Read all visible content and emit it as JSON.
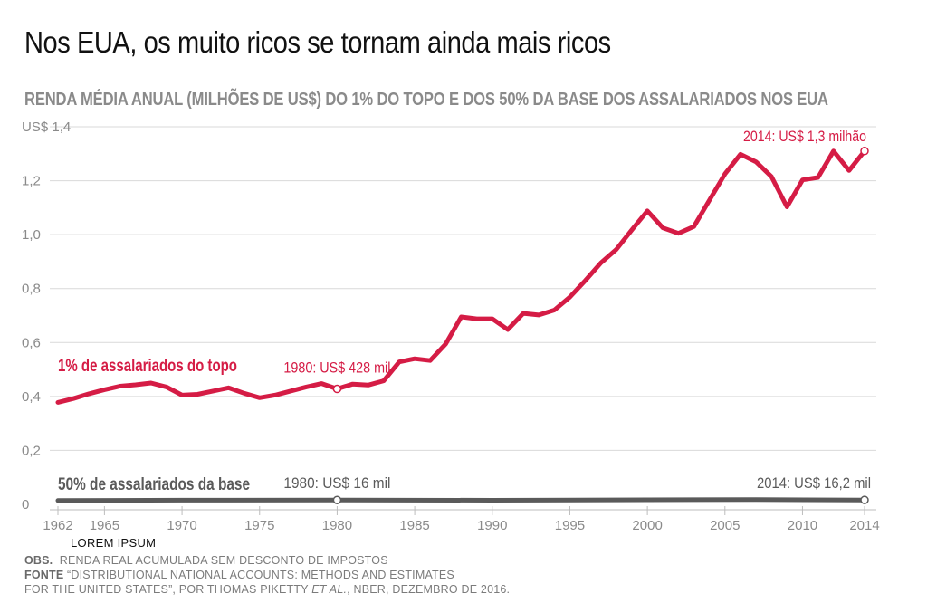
{
  "title": "Nos EUA, os muito ricos se tornam ainda mais ricos",
  "subtitle": "RENDA MÉDIA ANUAL (MILHÕES DE US$) DO 1% DO TOPO E DOS 50% DA BASE DOS ASSALARIADOS NOS EUA",
  "lorem": "LOREM IPSUM",
  "notes": {
    "obs_label": "OBS.",
    "obs_text": "RENDA REAL ACUMULADA SEM DESCONTO DE IMPOSTOS",
    "fonte_label": "FONTE",
    "fonte_line1": "“DISTRIBUTIONAL NATIONAL ACCOUNTS: METHODS AND ESTIMATES",
    "fonte_line2a": "FOR THE UNITED STATES”, POR THOMAS PIKETTY ",
    "fonte_etal": "ET AL.",
    "fonte_line2b": ", NBER, DEZEMBRO DE 2016."
  },
  "colors": {
    "top": "#d51c45",
    "bottom": "#5a5a5a",
    "grid": "#d9d9d9",
    "tick": "#8a8a8a"
  },
  "chart_data": {
    "type": "line",
    "ylim": [
      0,
      1.4
    ],
    "xlim": [
      1962,
      2014
    ],
    "y_ticks": [
      {
        "value": 0,
        "label": "0"
      },
      {
        "value": 0.2,
        "label": "0,2"
      },
      {
        "value": 0.4,
        "label": "0,4"
      },
      {
        "value": 0.6,
        "label": "0,6"
      },
      {
        "value": 0.8,
        "label": "0,8"
      },
      {
        "value": 1.0,
        "label": "1,0"
      },
      {
        "value": 1.2,
        "label": "1,2"
      },
      {
        "value": 1.4,
        "label": "US$ 1,4"
      }
    ],
    "x_ticks": [
      1962,
      1965,
      1970,
      1975,
      1980,
      1985,
      1990,
      1995,
      2000,
      2005,
      2010,
      2014
    ],
    "series": [
      {
        "name": "1% de assalariados do topo",
        "color": "#d51c45",
        "x": [
          1962,
          1963,
          1964,
          1965,
          1966,
          1967,
          1968,
          1969,
          1970,
          1971,
          1972,
          1973,
          1974,
          1975,
          1976,
          1977,
          1978,
          1979,
          1980,
          1981,
          1982,
          1983,
          1984,
          1985,
          1986,
          1987,
          1988,
          1989,
          1990,
          1991,
          1992,
          1993,
          1994,
          1995,
          1996,
          1997,
          1998,
          1999,
          2000,
          2001,
          2002,
          2003,
          2004,
          2005,
          2006,
          2007,
          2008,
          2009,
          2010,
          2011,
          2012,
          2013,
          2014
        ],
        "values": [
          0.378,
          0.392,
          0.41,
          0.425,
          0.438,
          0.443,
          0.45,
          0.435,
          0.405,
          0.408,
          0.42,
          0.432,
          0.412,
          0.395,
          0.405,
          0.42,
          0.435,
          0.448,
          0.428,
          0.446,
          0.442,
          0.458,
          0.528,
          0.54,
          0.533,
          0.595,
          0.695,
          0.688,
          0.688,
          0.648,
          0.708,
          0.702,
          0.72,
          0.768,
          0.83,
          0.895,
          0.945,
          1.018,
          1.088,
          1.025,
          1.005,
          1.03,
          1.128,
          1.225,
          1.298,
          1.27,
          1.215,
          1.103,
          1.203,
          1.212,
          1.31,
          1.238,
          1.31
        ]
      },
      {
        "name": "50% de assalariados da base",
        "color": "#5a5a5a",
        "x": [
          1962,
          1970,
          1980,
          1990,
          2000,
          2007,
          2014
        ],
        "values": [
          0.0142,
          0.0155,
          0.016,
          0.0152,
          0.0168,
          0.0175,
          0.0162
        ]
      }
    ],
    "annotations": [
      {
        "series": 0,
        "x": 1980,
        "y": 0.428,
        "text": "1980: US$ 428 mil"
      },
      {
        "series": 0,
        "x": 2014,
        "y": 1.31,
        "text": "2014: US$ 1,3 milhão"
      },
      {
        "series": 1,
        "x": 1980,
        "y": 0.016,
        "text": "1980: US$ 16 mil"
      },
      {
        "series": 1,
        "x": 2014,
        "y": 0.0162,
        "text": "2014: US$ 16,2 mil"
      }
    ]
  }
}
